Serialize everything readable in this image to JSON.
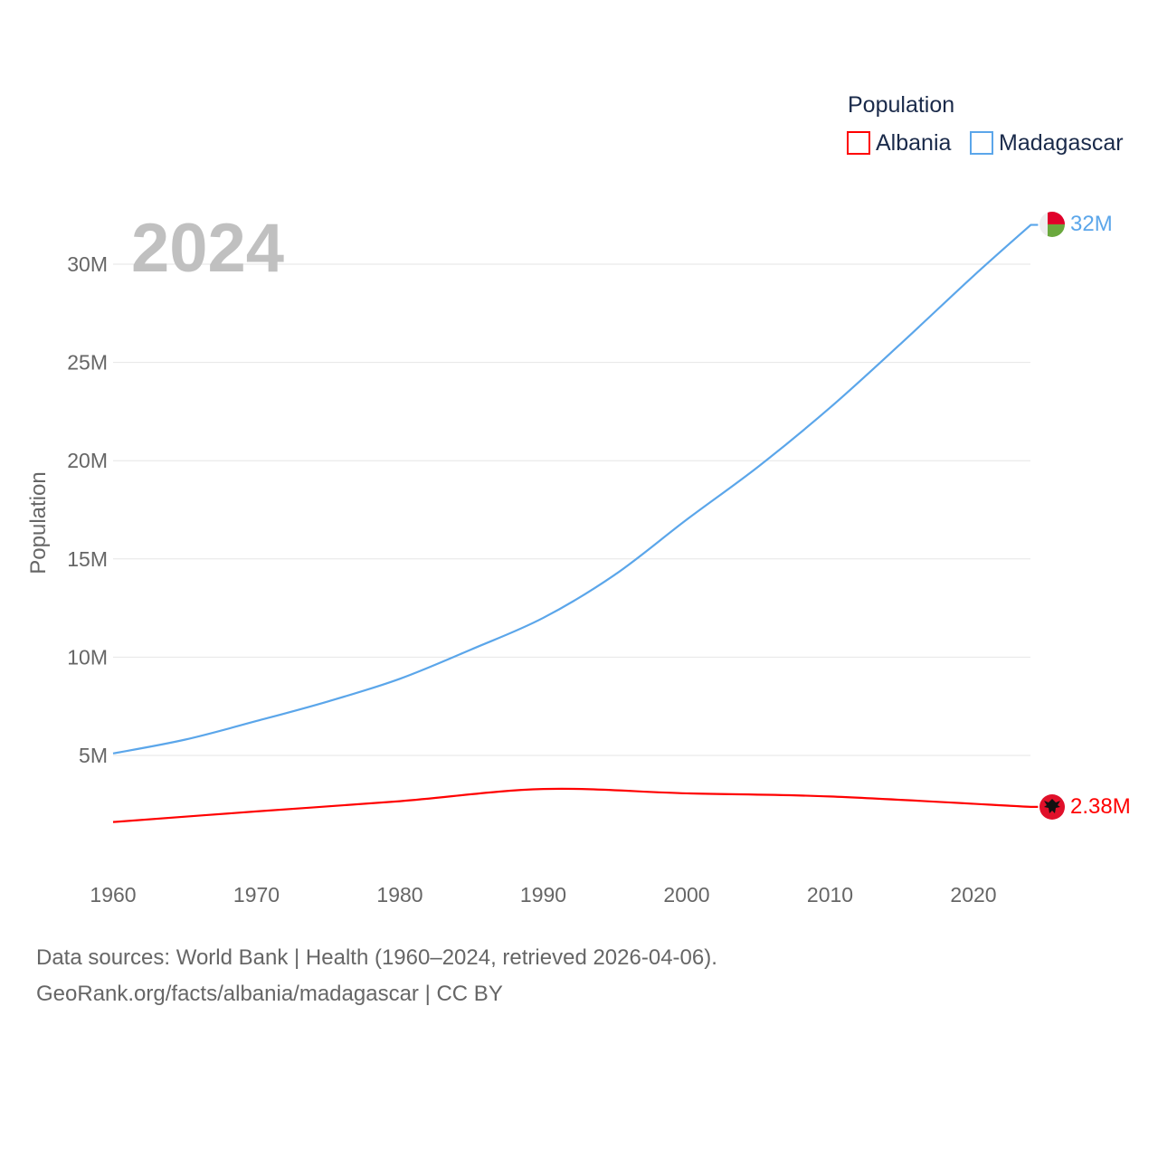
{
  "chart_data": {
    "type": "line",
    "year_label": "2024",
    "ylabel": "Population",
    "legend_title": "Population",
    "legend_position": "top-right",
    "xlim": [
      1960,
      2024
    ],
    "ylim": [
      0,
      32000000
    ],
    "grid": true,
    "x_ticks": [
      "1960",
      "1970",
      "1980",
      "1990",
      "2000",
      "2010",
      "2020"
    ],
    "y_ticks": [
      {
        "label": "5M",
        "value": 5000000
      },
      {
        "label": "10M",
        "value": 10000000
      },
      {
        "label": "15M",
        "value": 15000000
      },
      {
        "label": "20M",
        "value": 20000000
      },
      {
        "label": "25M",
        "value": 25000000
      },
      {
        "label": "30M",
        "value": 30000000
      }
    ],
    "series": [
      {
        "name": "Albania",
        "color": "#ff0000",
        "end_label": "2.38M",
        "flag": "albania-flag",
        "x": [
          1960,
          1970,
          1980,
          1990,
          2000,
          2010,
          2024
        ],
        "values": [
          1610000,
          2150000,
          2670000,
          3290000,
          3070000,
          2910000,
          2380000
        ]
      },
      {
        "name": "Madagascar",
        "color": "#5ba6ea",
        "end_label": "32M",
        "flag": "madagascar-flag",
        "x": [
          1960,
          1965,
          1970,
          1975,
          1980,
          1985,
          1990,
          1995,
          2000,
          2005,
          2010,
          2015,
          2020,
          2024
        ],
        "values": [
          5100000,
          5800000,
          6750000,
          7750000,
          8900000,
          10400000,
          12000000,
          14200000,
          17000000,
          19700000,
          22700000,
          26000000,
          29400000,
          32000000
        ]
      }
    ]
  },
  "footer": {
    "line1": "Data sources: World Bank | Health (1960–2024, retrieved 2026-04-06).",
    "line2": "GeoRank.org/facts/albania/madagascar | CC BY"
  }
}
